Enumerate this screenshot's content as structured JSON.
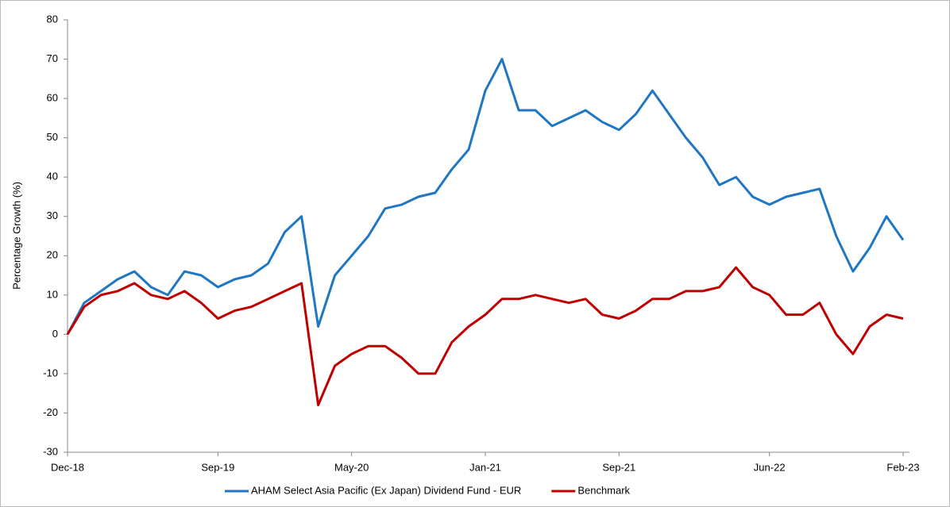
{
  "chart_data": {
    "type": "line",
    "y_label": "Percentage Growth (%)",
    "categories": [
      "Dec-18",
      null,
      null,
      null,
      null,
      null,
      null,
      null,
      null,
      "Sep-19",
      null,
      null,
      null,
      null,
      null,
      null,
      null,
      "May-20",
      null,
      null,
      null,
      null,
      null,
      null,
      null,
      "Jan-21",
      null,
      null,
      null,
      null,
      null,
      null,
      null,
      "Sep-21",
      null,
      null,
      null,
      null,
      null,
      null,
      null,
      null,
      "Jun-22",
      null,
      null,
      null,
      null,
      null,
      null,
      null,
      "Feb-23"
    ],
    "series": [
      {
        "name": "AHAM Select Asia Pacific (Ex Japan) Dividend Fund - EUR",
        "color": "#1f77c4",
        "values": [
          0,
          8,
          11,
          14,
          16,
          12,
          10,
          16,
          15,
          12,
          14,
          15,
          18,
          26,
          30,
          2,
          15,
          20,
          25,
          32,
          33,
          35,
          36,
          42,
          47,
          62,
          70,
          57,
          57,
          53,
          55,
          57,
          54,
          52,
          56,
          62,
          56,
          50,
          45,
          38,
          40,
          35,
          33,
          35,
          36,
          37,
          25,
          16,
          22,
          30,
          24
        ]
      },
      {
        "name": "Benchmark",
        "color": "#c00000",
        "values": [
          0,
          7,
          10,
          11,
          13,
          10,
          9,
          11,
          8,
          4,
          6,
          7,
          9,
          11,
          13,
          -18,
          -8,
          -5,
          -3,
          -3,
          -6,
          -10,
          -10,
          -2,
          2,
          5,
          9,
          9,
          10,
          9,
          8,
          9,
          5,
          4,
          6,
          9,
          9,
          11,
          11,
          12,
          17,
          12,
          10,
          5,
          5,
          8,
          0,
          -5,
          2,
          5,
          4
        ]
      }
    ],
    "ylim": [
      -30,
      80
    ],
    "yticks": [
      -30,
      -20,
      -10,
      0,
      10,
      20,
      30,
      40,
      50,
      60,
      70,
      80
    ],
    "grid": false,
    "legend": "bottom"
  }
}
